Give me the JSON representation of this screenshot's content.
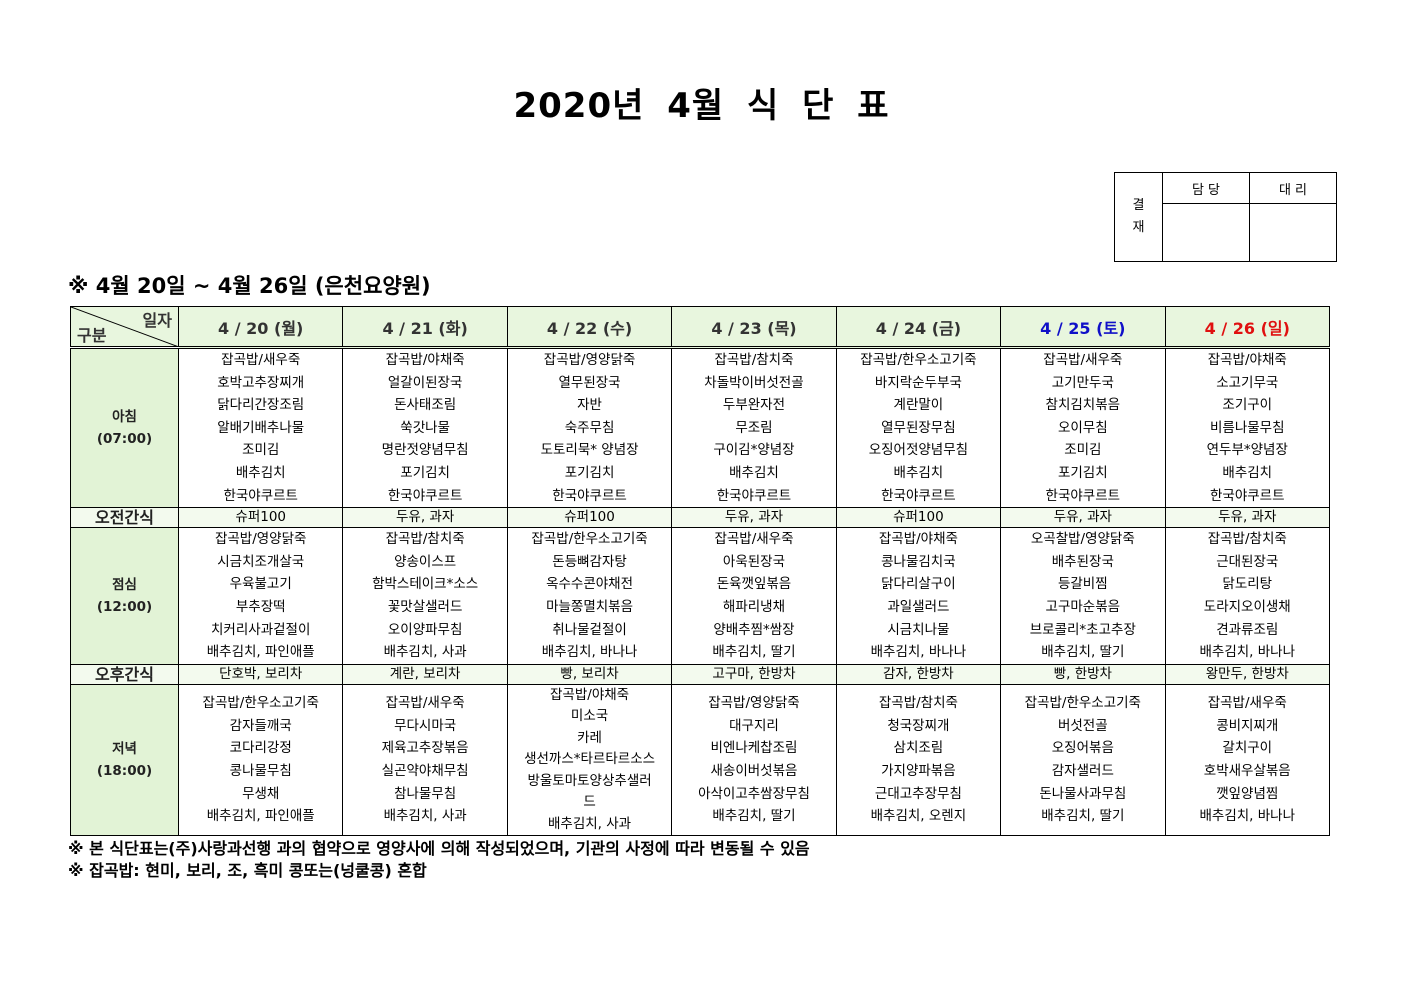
{
  "title": "2020년 4월 식 단 표",
  "approval": {
    "label": "결\n재",
    "label_lines": [
      "결",
      "재"
    ],
    "cols": [
      "담 당",
      "대 리"
    ]
  },
  "subtitle": "※ 4월 20일 ~ 4월 26일 (은천요양원)",
  "header": {
    "corner_top": "일자",
    "corner_bottom": "구분",
    "days": [
      {
        "label": "4 / 20 (월)",
        "type": "weekday"
      },
      {
        "label": "4 / 21 (화)",
        "type": "weekday"
      },
      {
        "label": "4 / 22 (수)",
        "type": "weekday"
      },
      {
        "label": "4 / 23 (목)",
        "type": "weekday"
      },
      {
        "label": "4 / 24 (금)",
        "type": "weekday"
      },
      {
        "label": "4 / 25 (토)",
        "type": "sat"
      },
      {
        "label": "4 / 26 (일)",
        "type": "sun"
      }
    ]
  },
  "colors": {
    "saturday": "#1010c8",
    "sunday": "#e01010",
    "header_bg": "#e8f6de",
    "label_bg": "#e2f3d6"
  },
  "meals": [
    {
      "id": "breakfast",
      "label": "아침",
      "time": "(07:00)",
      "kind": "meal",
      "days": [
        [
          "잡곡밥/새우죽",
          "호박고추장찌개",
          "닭다리간장조림",
          "알배기배추나물",
          "조미김",
          "배추김치",
          "한국야쿠르트"
        ],
        [
          "잡곡밥/야채죽",
          "얼갈이된장국",
          "돈사태조림",
          "쑥갓나물",
          "명란젓양념무침",
          "포기김치",
          "한국야쿠르트"
        ],
        [
          "잡곡밥/영양닭죽",
          "열무된장국",
          "자반",
          "숙주무침",
          "도토리묵* 양념장",
          "포기김치",
          "한국야쿠르트"
        ],
        [
          "잡곡밥/참치죽",
          "차돌박이버섯전골",
          "두부완자전",
          "무조림",
          "구이김*양념장",
          "배추김치",
          "한국야쿠르트"
        ],
        [
          "잡곡밥/한우소고기죽",
          "바지락순두부국",
          "계란말이",
          "열무된장무침",
          "오징어젓양념무침",
          "배추김치",
          "한국야쿠르트"
        ],
        [
          "잡곡밥/새우죽",
          "고기만두국",
          "참치김치볶음",
          "오이무침",
          "조미김",
          "포기김치",
          "한국야쿠르트"
        ],
        [
          "잡곡밥/야채죽",
          "소고기무국",
          "조기구이",
          "비름나물무침",
          "연두부*양념장",
          "배추김치",
          "한국야쿠르트"
        ]
      ]
    },
    {
      "id": "am-snack",
      "label": "오전간식",
      "kind": "snack",
      "days": [
        [
          "슈퍼100"
        ],
        [
          "두유, 과자"
        ],
        [
          "슈퍼100"
        ],
        [
          "두유, 과자"
        ],
        [
          "슈퍼100"
        ],
        [
          "두유, 과자"
        ],
        [
          "두유, 과자"
        ]
      ]
    },
    {
      "id": "lunch",
      "label": "점심",
      "time": "(12:00)",
      "kind": "meal",
      "days": [
        [
          "잡곡밥/영양닭죽",
          "시금치조개살국",
          "우육불고기",
          "부추장떡",
          "치커리사과겉절이",
          "배추김치, 파인애플"
        ],
        [
          "잡곡밥/참치죽",
          "양송이스프",
          "함박스테이크*소스",
          "꽃맛살샐러드",
          "오이양파무침",
          "배추김치, 사과"
        ],
        [
          "잡곡밥/한우소고기죽",
          "돈등뼈감자탕",
          "옥수수콘야채전",
          "마늘쫑멸치볶음",
          "취나물겉절이",
          "배추김치, 바나나"
        ],
        [
          "잡곡밥/새우죽",
          "아욱된장국",
          "돈육깻잎볶음",
          "해파리냉채",
          "양배추찜*쌈장",
          "배추김치, 딸기"
        ],
        [
          "잡곡밥/야채죽",
          "콩나물김치국",
          "닭다리살구이",
          "과일샐러드",
          "시금치나물",
          "배추김치, 바나나"
        ],
        [
          "오곡찰밥/영양닭죽",
          "배추된장국",
          "등갈비찜",
          "고구마순볶음",
          "브로콜리*초고추장",
          "배추김치, 딸기"
        ],
        [
          "잡곡밥/참치죽",
          "근대된장국",
          "닭도리탕",
          "도라지오이생채",
          "견과류조림",
          "배추김치, 바나나"
        ]
      ]
    },
    {
      "id": "pm-snack",
      "label": "오후간식",
      "kind": "snack",
      "days": [
        [
          "단호박, 보리차"
        ],
        [
          "계란, 보리차"
        ],
        [
          "빵, 보리차"
        ],
        [
          "고구마, 한방차"
        ],
        [
          "감자, 한방차"
        ],
        [
          "빵, 한방차"
        ],
        [
          "왕만두, 한방차"
        ]
      ]
    },
    {
      "id": "dinner",
      "label": "저녁",
      "time": "(18:00)",
      "kind": "meal",
      "days": [
        [
          "잡곡밥/한우소고기죽",
          "감자들깨국",
          "코다리강정",
          "콩나물무침",
          "무생채",
          "배추김치, 파인애플"
        ],
        [
          "잡곡밥/새우죽",
          "무다시마국",
          "제육고추장볶음",
          "실곤약야채무침",
          "참나물무침",
          "배추김치, 사과"
        ],
        [
          "잡곡밥/야채죽",
          "미소국",
          "카레",
          "생선까스*타르타르소스",
          "방울토마토양상추샐러",
          "드",
          "배추김치, 사과"
        ],
        [
          "잡곡밥/영양닭죽",
          "대구지리",
          "비엔나케찹조림",
          "새송이버섯볶음",
          "아삭이고추쌈장무침",
          "배추김치, 딸기"
        ],
        [
          "잡곡밥/참치죽",
          "청국장찌개",
          "삼치조림",
          "가지양파볶음",
          "근대고추장무침",
          "배추김치, 오렌지"
        ],
        [
          "잡곡밥/한우소고기죽",
          "버섯전골",
          "오징어볶음",
          "감자샐러드",
          "돈나물사과무침",
          "배추김치, 딸기"
        ],
        [
          "잡곡밥/새우죽",
          "콩비지찌개",
          "갈치구이",
          "호박새우살볶음",
          "깻잎양념찜",
          "배추김치, 바나나"
        ]
      ]
    }
  ],
  "footnotes": [
    "※ 본 식단표는(주)사랑과선행 과의 협약으로 영양사에 의해 작성되었으며, 기관의 사정에 따라 변동될 수 있음",
    "※ 잡곡밥: 현미, 보리, 조, 흑미 콩또는(넝쿨콩) 혼합"
  ]
}
